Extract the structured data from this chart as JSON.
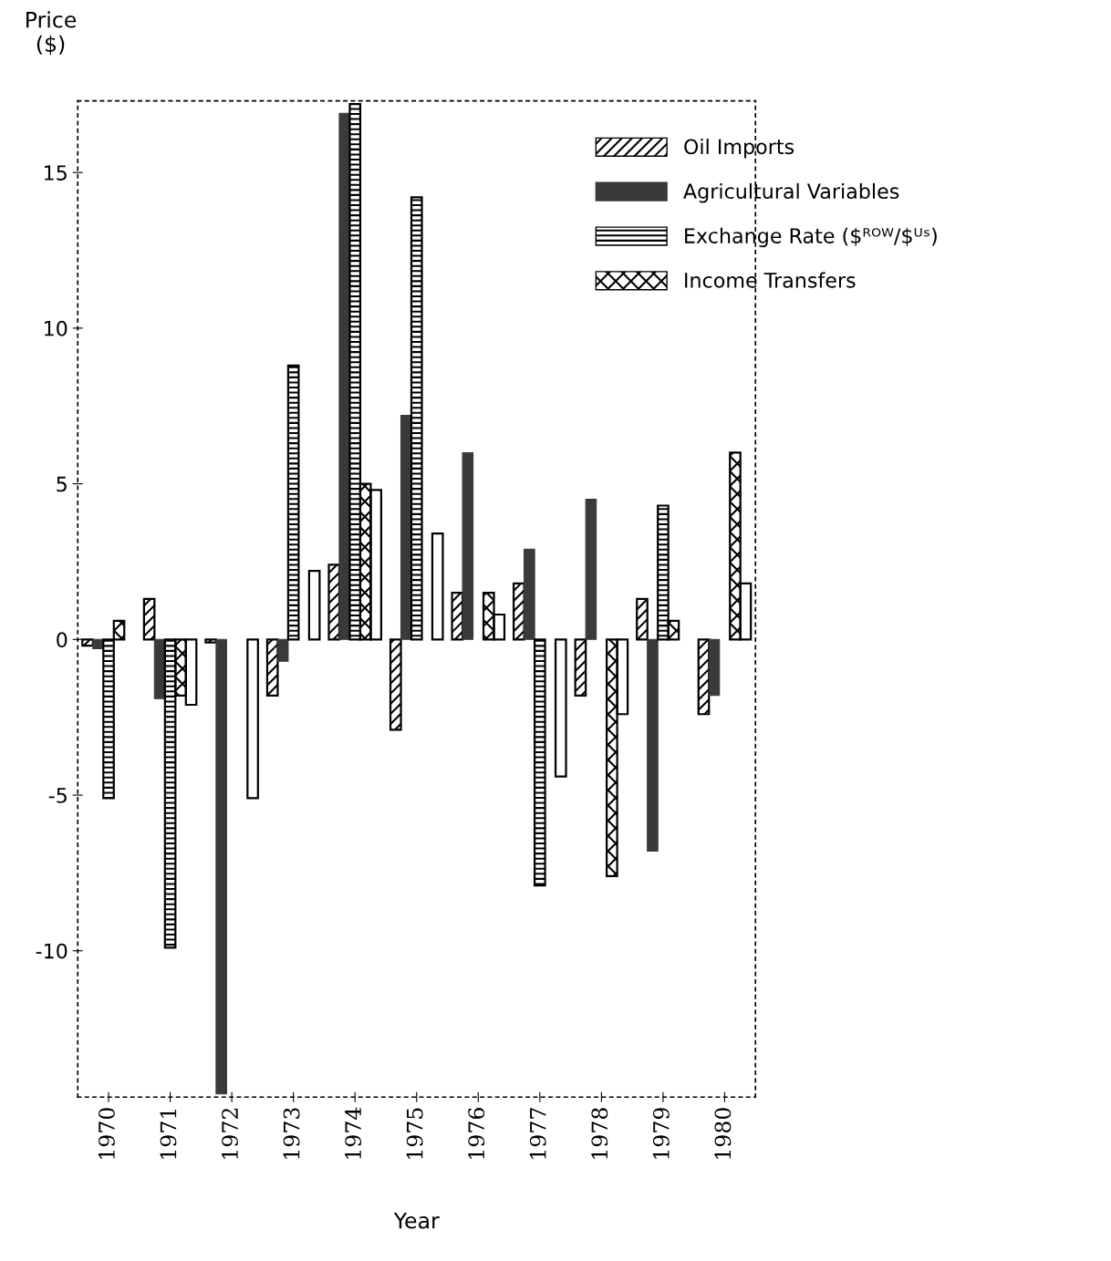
{
  "chart_data": {
    "type": "bar",
    "xlabel": "Year",
    "ylabel": "Price\n($)",
    "categories": [
      "1970",
      "1971",
      "1972",
      "1973",
      "1974",
      "1975",
      "1976",
      "1977",
      "1978",
      "1979",
      "1980"
    ],
    "series": [
      {
        "name": "Oil Imports",
        "color": "#000000",
        "values": [
          -0.2,
          1.3,
          -0.1,
          -1.8,
          2.4,
          -2.9,
          1.5,
          1.8,
          -1.8,
          1.3,
          -2.4
        ]
      },
      {
        "name": "Agricultural Variables",
        "color": "#3a3a3a",
        "values": [
          -0.3,
          -1.9,
          -14.6,
          -0.7,
          16.9,
          7.2,
          6.0,
          2.9,
          4.5,
          -6.8,
          -1.8
        ]
      },
      {
        "name": "Exchange Rate ($ᴿᴼᵂ/$ᵁˢ)",
        "color": "#000000",
        "values": [
          -5.1,
          -9.9,
          null,
          8.8,
          17.2,
          14.2,
          null,
          -7.9,
          null,
          4.3,
          null
        ]
      },
      {
        "name": "Income Transfers",
        "color": "#000000",
        "values": [
          0.6,
          -1.8,
          null,
          null,
          5.0,
          null,
          1.5,
          null,
          -7.6,
          0.6,
          6.0
        ]
      },
      {
        "color": "#000000",
        "values": [
          null,
          -2.1,
          -5.1,
          2.2,
          4.8,
          3.4,
          0.8,
          -4.4,
          -2.4,
          null,
          1.8
        ]
      }
    ],
    "ylim": [
      -14.7,
      17.3
    ],
    "yticks": [
      -10,
      -5,
      0,
      5,
      10,
      15
    ],
    "grid": false,
    "legend": "top right"
  }
}
